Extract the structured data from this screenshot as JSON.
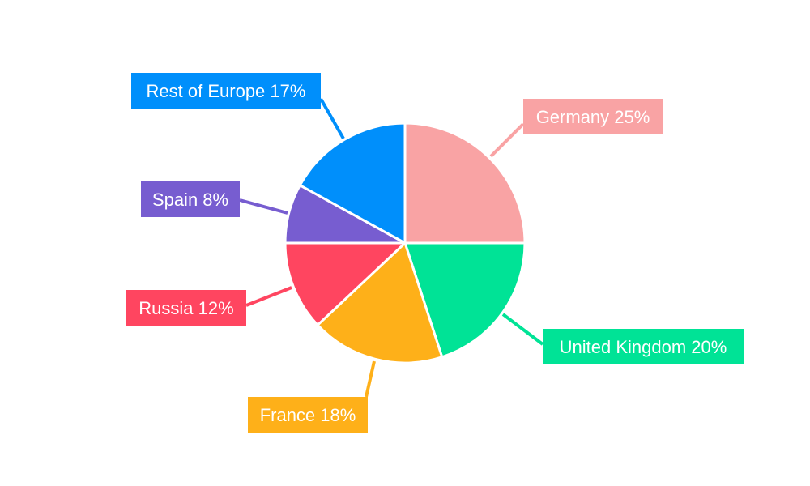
{
  "chart_data": {
    "type": "pie",
    "title": "",
    "start_angle": "top",
    "direction": "clockwise",
    "slices": [
      {
        "label": "Germany",
        "value": 25,
        "display": "Germany 25%",
        "color": "#F9A3A4"
      },
      {
        "label": "United Kingdom",
        "value": 20,
        "display": "United Kingdom 20%",
        "color": "#00E396"
      },
      {
        "label": "France",
        "value": 18,
        "display": "France 18%",
        "color": "#FEB019"
      },
      {
        "label": "Russia",
        "value": 12,
        "display": "Russia 12%",
        "color": "#FF4560"
      },
      {
        "label": "Spain",
        "value": 8,
        "display": "Spain 8%",
        "color": "#775DD0"
      },
      {
        "label": "Rest of Europe",
        "value": 17,
        "display": "Rest of Europe 17%",
        "color": "#008FFB"
      }
    ],
    "label_text_color": "#FFFFFF",
    "slice_border_color": "#FFFFFF"
  }
}
